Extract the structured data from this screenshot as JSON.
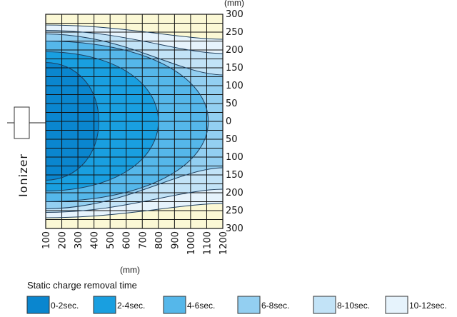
{
  "chart_data": {
    "type": "area",
    "x_unit": "(mm)",
    "y_unit": "(mm)",
    "x_ticks": [
      100,
      200,
      300,
      400,
      500,
      600,
      700,
      800,
      900,
      1000,
      1100,
      1200
    ],
    "y_ticks": [
      300,
      250,
      200,
      150,
      100,
      50,
      0,
      50,
      100,
      150,
      200,
      250,
      300
    ],
    "y_tick_values": [
      300,
      250,
      200,
      150,
      100,
      50,
      0,
      -50,
      -100,
      -150,
      -200,
      -250,
      -300
    ],
    "x_range": [
      100,
      1200
    ],
    "y_range": [
      -300,
      300
    ],
    "grid": true,
    "source_label": "Ionizer",
    "legend_title": "Static charge removal time",
    "legend_position": "bottom",
    "series": [
      {
        "name": "0-2sec.",
        "color": "#0a86cf",
        "reach_x": 430,
        "half_width_at_source": 165
      },
      {
        "name": "2-4sec.",
        "color": "#199fe0",
        "reach_x": 800,
        "half_width_at_source": 195
      },
      {
        "name": "4-6sec.",
        "color": "#55b7ea",
        "reach_x": 1110,
        "half_width_at_source": 225
      },
      {
        "name": "6-8sec.",
        "color": "#93cff1",
        "reach_x": 1200,
        "half_width_at_source": 245,
        "edge_half_width": 130
      },
      {
        "name": "8-10sec.",
        "color": "#c2e3f7",
        "reach_x": 1200,
        "half_width_at_source": 255,
        "edge_half_width": 190
      },
      {
        "name": "10-12sec.",
        "color": "#e6f3fc",
        "reach_x": 1200,
        "half_width_at_source": 270,
        "edge_half_width": 230
      }
    ],
    "background_color": "#fbf8d5"
  }
}
